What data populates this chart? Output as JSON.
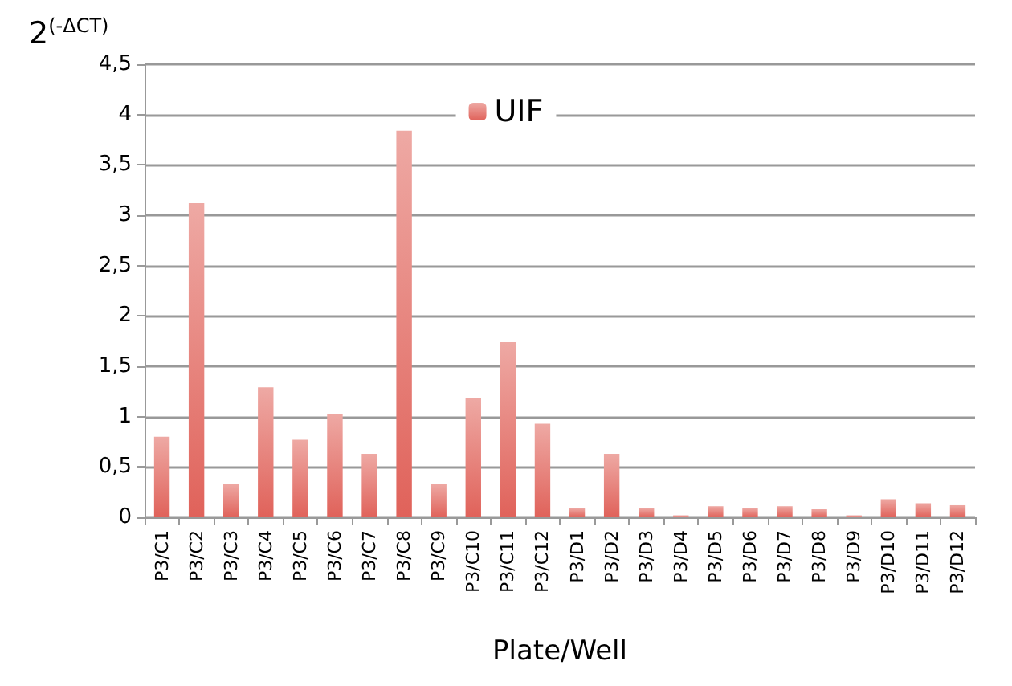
{
  "chart_data": {
    "type": "bar",
    "xlabel": "Plate/Well",
    "ylabel": "2$^{(-ΔCT)}$",
    "categories": [
      "P3/C1",
      "P3/C2",
      "P3/C3",
      "P3/C4",
      "P3/C5",
      "P3/C6",
      "P3/C7",
      "P3/C8",
      "P3/C9",
      "P3/C10",
      "P3/C11",
      "P3/C12",
      "P3/D1",
      "P3/D2",
      "P3/D3",
      "P3/D4",
      "P3/D5",
      "P3/D6",
      "P3/D7",
      "P3/D8",
      "P3/D9",
      "P3/D10",
      "P3/D11",
      "P3/D12"
    ],
    "series": [
      {
        "name": "UIF",
        "color": "#e0625a",
        "values": [
          0.8,
          3.12,
          0.33,
          1.29,
          0.77,
          1.03,
          0.63,
          3.84,
          0.33,
          1.18,
          1.74,
          0.93,
          0.09,
          0.63,
          0.09,
          0.02,
          0.11,
          0.09,
          0.11,
          0.08,
          0.02,
          0.18,
          0.14,
          0.12
        ]
      }
    ],
    "ylim": [
      0,
      4.5
    ],
    "yticks": [
      0,
      {
        "value": 0.5,
        "label": "0,5"
      },
      1,
      {
        "value": 1.5,
        "label": "1,5"
      },
      2,
      {
        "value": 2.5,
        "label": "2,5"
      },
      3,
      {
        "value": 3.5,
        "label": "3,5"
      },
      4,
      {
        "value": 4.5,
        "label": "4,5"
      }
    ],
    "grid": "y",
    "legend": "top"
  }
}
